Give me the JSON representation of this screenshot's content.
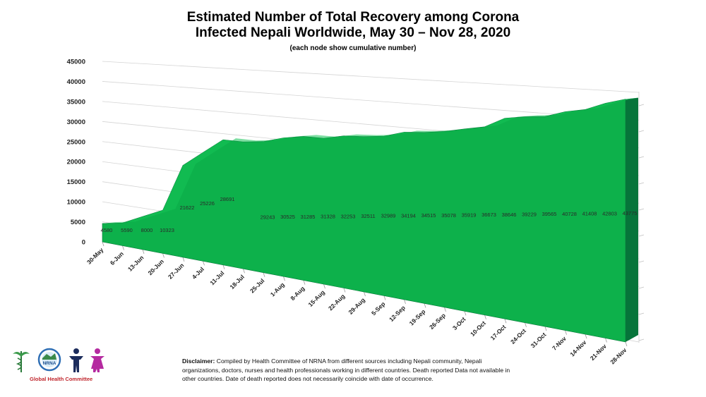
{
  "title_line1": "Estimated Number of Total Recovery among Corona",
  "title_line2": "Infected Nepali Worldwide, May 30 – Nov 28, 2020",
  "subtitle": "(each node show cumulative number)",
  "disclaimer": {
    "label": "Disclaimer:",
    "text": " Compiled by Health Committee  of NRNA from different sources including Nepali community, Nepali organizations, doctors, nurses and health professionals working in different countries. Death reported Data not available in other countries. Date of death reported does not necessarily coincide with date of occurrence."
  },
  "logo": {
    "org": "NRNA",
    "caption": "Global Health Committee"
  },
  "colors": {
    "area_fill": "#0db14b",
    "area_side": "#06743a",
    "area_edge": "#087a3a",
    "caption_red": "#c0262d"
  },
  "chart_data": {
    "type": "area",
    "title": "Estimated Number of Total Recovery among Corona Infected Nepali Worldwide, May 30 – Nov 28, 2020",
    "subtitle": "(each node show cumulative number)",
    "xlabel": "",
    "ylabel": "",
    "ylim": [
      0,
      45000
    ],
    "yticks": [
      0,
      5000,
      10000,
      15000,
      20000,
      25000,
      30000,
      35000,
      40000,
      45000
    ],
    "grid": true,
    "legend": "none",
    "categories": [
      "30-May",
      "6-Jun",
      "13-Jun",
      "20-Jun",
      "27-Jun",
      "4-Jul",
      "11-Jul",
      "18-Jul",
      "25-Jul",
      "1-Aug",
      "8-Aug",
      "15-Aug",
      "22-Aug",
      "29-Aug",
      "5-Sep",
      "12-Sep",
      "19-Sep",
      "26-Sep",
      "3-Oct",
      "10-Oct",
      "17-Oct",
      "24-Oct",
      "31-Oct",
      "7-Nov",
      "14-Nov",
      "21-Nov",
      "28-Nov"
    ],
    "values": [
      4580,
      5590,
      8000,
      10323,
      21622,
      25226,
      28691,
      28691,
      29243,
      30525,
      31285,
      31328,
      32253,
      32511,
      32989,
      34194,
      34515,
      35078,
      35919,
      36673,
      38646,
      39229,
      39565,
      40728,
      41408,
      42803,
      43775
    ],
    "data_labels": [
      "4580",
      "5590",
      "8000",
      "10323",
      "21622",
      "25226",
      "28691",
      "",
      "29243",
      "30525",
      "31285",
      "31328",
      "32253",
      "32511",
      "32989",
      "34194",
      "34515",
      "35078",
      "35919",
      "36673",
      "38646",
      "39229",
      "39565",
      "40728",
      "41408",
      "42803",
      "43775"
    ]
  }
}
